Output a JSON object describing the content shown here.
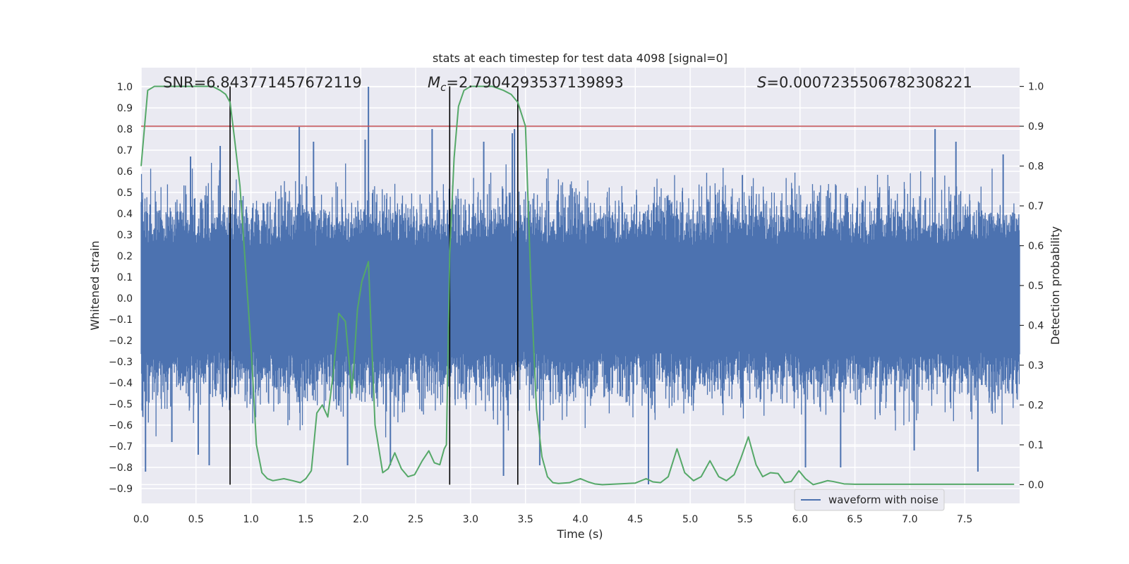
{
  "chart_data": {
    "type": "line",
    "title": "stats at each timestep for test data 4098 [signal=0]",
    "xlabel": "Time (s)",
    "ylabel_left": "Whitened strain",
    "ylabel_right": "Detection probability",
    "xlim": [
      0.0,
      8.0
    ],
    "ylim_left": [
      -0.97,
      1.09
    ],
    "ylim_right": [
      -0.047,
      1.047
    ],
    "x_ticks": [
      0.0,
      0.5,
      1.0,
      1.5,
      2.0,
      2.5,
      3.0,
      3.5,
      4.0,
      4.5,
      5.0,
      5.5,
      6.0,
      6.5,
      7.0,
      7.5
    ],
    "x_tick_labels": [
      "0.0",
      "0.5",
      "1.0",
      "1.5",
      "2.0",
      "2.5",
      "3.0",
      "3.5",
      "4.0",
      "4.5",
      "5.0",
      "5.5",
      "6.0",
      "6.5",
      "7.0",
      "7.5"
    ],
    "y_left_ticks": [
      1.0,
      0.9,
      0.8,
      0.7,
      0.6,
      0.5,
      0.4,
      0.3,
      0.2,
      0.1,
      0.0,
      -0.1,
      -0.2,
      -0.3,
      -0.4,
      -0.5,
      -0.6,
      -0.7,
      -0.8,
      -0.9
    ],
    "y_left_tick_labels": [
      "1.0",
      "0.9",
      "0.8",
      "0.7",
      "0.6",
      "0.5",
      "0.4",
      "0.3",
      "0.2",
      "0.1",
      "0.0",
      "−0.1",
      "−0.2",
      "−0.3",
      "−0.4",
      "−0.5",
      "−0.6",
      "−0.7",
      "−0.8",
      "−0.9"
    ],
    "y_right_ticks": [
      1.0,
      0.9,
      0.8,
      0.7,
      0.6,
      0.5,
      0.4,
      0.3,
      0.2,
      0.1,
      0.0
    ],
    "y_right_tick_labels": [
      "1.0",
      "0.9",
      "0.8",
      "0.7",
      "0.6",
      "0.5",
      "0.4",
      "0.3",
      "0.2",
      "0.1",
      "0.0"
    ],
    "annotations": {
      "snr": "SNR=6.843771457672119",
      "mc_symbol": "M",
      "mc_subscript": "c",
      "mc_value": "=2.7904293537139893",
      "s_symbol": "S",
      "s_value": "=0.0007235506782308221"
    },
    "threshold_right": 0.9,
    "vertical_lines_x": [
      0.81,
      2.81,
      3.43
    ],
    "legend": {
      "label": "waveform with noise",
      "position": "lower-right"
    },
    "series": [
      {
        "name": "waveform with noise",
        "axis": "left",
        "color": "#4c72b0",
        "envelope_typical": 0.45,
        "spikes": [
          {
            "x": 0.04,
            "y": -0.82
          },
          {
            "x": 0.28,
            "y": -0.68
          },
          {
            "x": 0.45,
            "y": 0.67
          },
          {
            "x": 0.52,
            "y": -0.74
          },
          {
            "x": 0.62,
            "y": -0.79
          },
          {
            "x": 0.72,
            "y": 0.72
          },
          {
            "x": 1.44,
            "y": 0.81
          },
          {
            "x": 1.57,
            "y": 0.74
          },
          {
            "x": 1.88,
            "y": -0.79
          },
          {
            "x": 2.07,
            "y": 1.0
          },
          {
            "x": 2.04,
            "y": 0.75
          },
          {
            "x": 2.27,
            "y": -0.79
          },
          {
            "x": 2.65,
            "y": 0.8
          },
          {
            "x": 3.12,
            "y": 0.74
          },
          {
            "x": 3.3,
            "y": -0.84
          },
          {
            "x": 3.38,
            "y": 0.78
          },
          {
            "x": 3.4,
            "y": 0.8
          },
          {
            "x": 3.63,
            "y": -0.79
          },
          {
            "x": 4.62,
            "y": -0.88
          },
          {
            "x": 6.05,
            "y": -0.8
          },
          {
            "x": 6.37,
            "y": -0.8
          },
          {
            "x": 7.04,
            "y": -0.72
          },
          {
            "x": 7.23,
            "y": 0.8
          },
          {
            "x": 7.42,
            "y": 0.74
          },
          {
            "x": 7.62,
            "y": -0.82
          },
          {
            "x": 7.85,
            "y": 0.68
          }
        ]
      },
      {
        "name": "detection probability",
        "axis": "right",
        "color": "#55a868",
        "x": [
          0.0,
          0.06,
          0.12,
          0.2,
          0.35,
          0.5,
          0.65,
          0.72,
          0.77,
          0.81,
          0.85,
          0.9,
          0.95,
          1.0,
          1.05,
          1.1,
          1.15,
          1.2,
          1.3,
          1.38,
          1.45,
          1.5,
          1.55,
          1.6,
          1.65,
          1.7,
          1.75,
          1.8,
          1.86,
          1.92,
          1.97,
          2.01,
          2.07,
          2.13,
          2.2,
          2.25,
          2.31,
          2.37,
          2.43,
          2.49,
          2.56,
          2.62,
          2.67,
          2.72,
          2.76,
          2.78,
          2.81,
          2.85,
          2.89,
          2.94,
          3.0,
          3.1,
          3.2,
          3.3,
          3.37,
          3.43,
          3.5,
          3.55,
          3.6,
          3.65,
          3.7,
          3.75,
          3.8,
          3.9,
          4.0,
          4.07,
          4.13,
          4.2,
          4.35,
          4.5,
          4.6,
          4.66,
          4.73,
          4.8,
          4.88,
          4.95,
          5.03,
          5.1,
          5.18,
          5.26,
          5.33,
          5.4,
          5.46,
          5.53,
          5.6,
          5.66,
          5.73,
          5.8,
          5.86,
          5.92,
          5.99,
          6.05,
          6.12,
          6.19,
          6.25,
          6.3,
          6.4,
          6.5,
          6.6,
          6.8,
          7.0,
          7.2,
          7.4,
          7.6,
          7.8,
          7.95
        ],
        "y": [
          0.8,
          0.99,
          1.0,
          1.0,
          1.0,
          1.0,
          1.0,
          0.99,
          0.98,
          0.96,
          0.87,
          0.75,
          0.55,
          0.35,
          0.1,
          0.03,
          0.015,
          0.01,
          0.015,
          0.01,
          0.005,
          0.015,
          0.035,
          0.18,
          0.2,
          0.17,
          0.28,
          0.43,
          0.41,
          0.23,
          0.44,
          0.51,
          0.56,
          0.15,
          0.03,
          0.04,
          0.08,
          0.04,
          0.02,
          0.025,
          0.06,
          0.085,
          0.055,
          0.05,
          0.09,
          0.1,
          0.58,
          0.82,
          0.95,
          0.99,
          1.0,
          1.0,
          1.0,
          0.99,
          0.98,
          0.96,
          0.9,
          0.5,
          0.19,
          0.07,
          0.02,
          0.005,
          0.003,
          0.005,
          0.015,
          0.007,
          0.002,
          0.0,
          0.002,
          0.004,
          0.015,
          0.007,
          0.005,
          0.02,
          0.09,
          0.03,
          0.01,
          0.02,
          0.06,
          0.02,
          0.01,
          0.025,
          0.065,
          0.12,
          0.05,
          0.02,
          0.03,
          0.028,
          0.005,
          0.008,
          0.035,
          0.015,
          0.0,
          0.005,
          0.01,
          0.008,
          0.002,
          0.001,
          0.001,
          0.001,
          0.001,
          0.001,
          0.001,
          0.001,
          0.001,
          0.001
        ]
      }
    ]
  }
}
